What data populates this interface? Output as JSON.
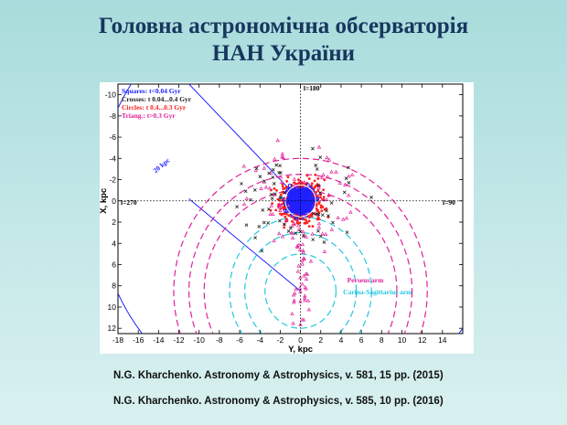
{
  "title": {
    "line1": "Головна астрономічна обсерваторія",
    "line2": "НАН України"
  },
  "references": [
    "N.G. Kharchenko. Astronomy  & Astrophysics,  v. 581, 15 pp.  (2015)",
    "N.G. Kharchenko. Astronomy  & Astrophysics,  v. 585, 10 pp.  (2016)"
  ],
  "colors": {
    "title": "#17375e",
    "blue": "#2020ff",
    "red": "#ff2020",
    "magenta": "#e0209a",
    "cyan": "#20c8e0",
    "black": "#202020"
  },
  "chart_data": {
    "type": "scatter",
    "xlabel": "Y, kpc",
    "ylabel": "X, kpc",
    "xlim": [
      -18,
      16
    ],
    "ylim": [
      12.5,
      -11
    ],
    "x_ticks": [
      -18,
      -16,
      -14,
      -12,
      -10,
      -8,
      -6,
      -4,
      -2,
      0,
      2,
      4,
      6,
      8,
      10,
      12,
      14
    ],
    "y_ticks": [
      -10,
      -8,
      -6,
      -4,
      -2,
      0,
      2,
      4,
      6,
      8,
      10,
      12
    ],
    "legend": [
      {
        "label": "Squares: t<0.04 Gyr",
        "color": "#2020ff"
      },
      {
        "label": "Crosses: t  0.04...0.4  Gyr",
        "color": "#202020"
      },
      {
        "label": "Circles: t  0.4...0.3  Gyr",
        "color": "#ff2020"
      },
      {
        "label": "Triang.: t>0.3 Gyr",
        "color": "#e0209a"
      }
    ],
    "legend_position": "top-left",
    "annotations": {
      "l180": "l=180",
      "l270": "l=270",
      "l90": "l=90",
      "radius": "20 kpc",
      "perseus": "Perseus arm",
      "carina": "Carina-Sagittarius arm"
    },
    "center": [
      0,
      0
    ],
    "sun_circle_radius": 1.5,
    "outer_circle_radius": 20,
    "galactic_center": [
      0,
      8.5
    ],
    "arcs": [
      {
        "name": "perseus",
        "color": "#e0209a",
        "radii": [
          9.5,
          11.0,
          12.5
        ]
      },
      {
        "name": "carina",
        "color": "#20c8e0",
        "radii": [
          3.5,
          5.5,
          7.0
        ]
      }
    ]
  }
}
